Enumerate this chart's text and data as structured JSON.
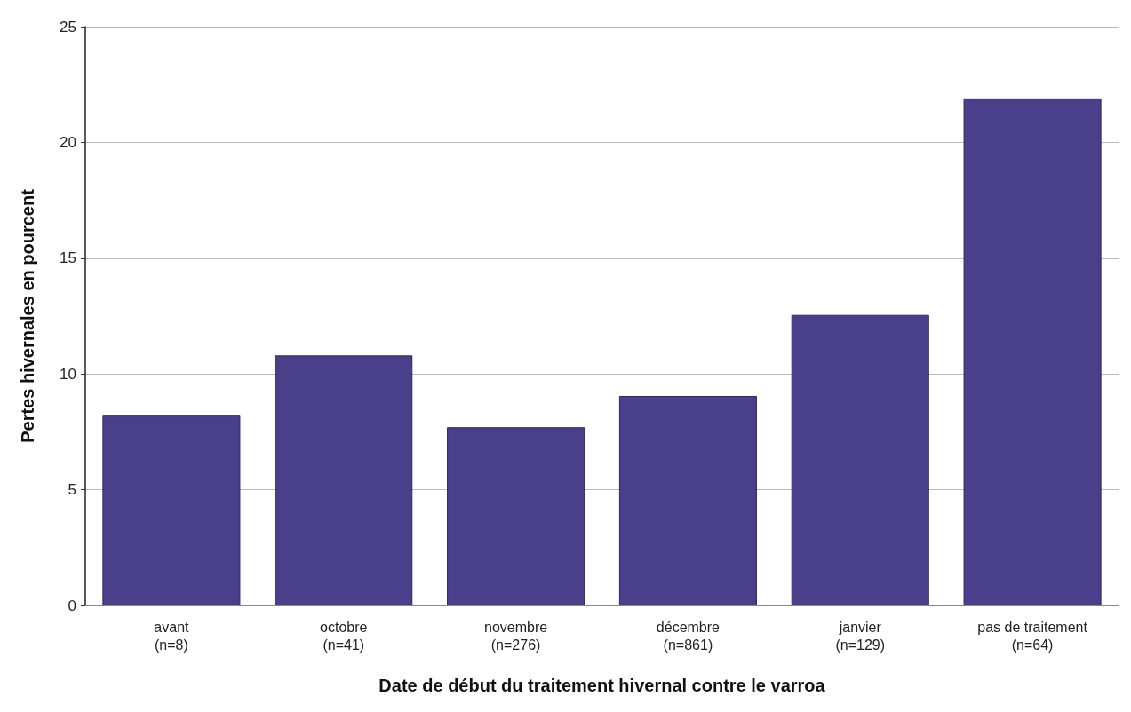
{
  "chart_data": {
    "type": "bar",
    "xlabel": "Date de début du traitement hivernal contre le varroa",
    "ylabel": "Pertes hivernales en pourcent",
    "categories": [
      "avant\n(n=8)",
      "octobre\n(n=41)",
      "novembre\n(n=276)",
      "décembre\n(n=861)",
      "janvier\n(n=129)",
      "pas de traitement\n(n=64)"
    ],
    "values": [
      8.2,
      10.8,
      7.7,
      9.05,
      12.55,
      21.9
    ],
    "color": "#4a3f8a",
    "ylim": [
      0,
      25
    ],
    "yticks": [
      0,
      5,
      10,
      15,
      20,
      25
    ],
    "grid": "y"
  }
}
